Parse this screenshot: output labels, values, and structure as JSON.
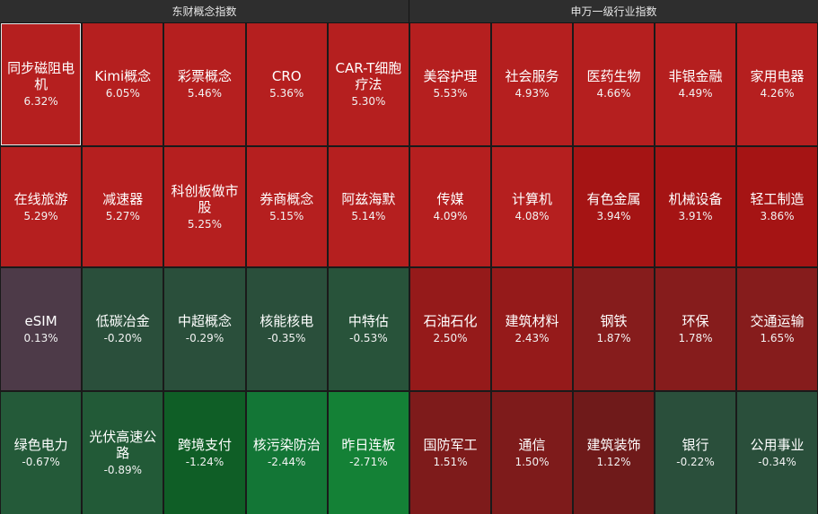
{
  "left_panel": {
    "title": "东财概念指数",
    "tiles": [
      {
        "name": "同步磁阻电机",
        "pct": "6.32%",
        "color": "#b51f1f",
        "selected": true
      },
      {
        "name": "Kimi概念",
        "pct": "6.05%",
        "color": "#b51f1f"
      },
      {
        "name": "彩票概念",
        "pct": "5.46%",
        "color": "#b51f1f"
      },
      {
        "name": "CRO",
        "pct": "5.36%",
        "color": "#b51f1f"
      },
      {
        "name": "CAR-T细胞疗法",
        "pct": "5.30%",
        "color": "#b51f1f"
      },
      {
        "name": "在线旅游",
        "pct": "5.29%",
        "color": "#b51f1f"
      },
      {
        "name": "减速器",
        "pct": "5.27%",
        "color": "#b51f1f"
      },
      {
        "name": "科创板做市股",
        "pct": "5.25%",
        "color": "#b51f1f"
      },
      {
        "name": "券商概念",
        "pct": "5.15%",
        "color": "#b51f1f"
      },
      {
        "name": "阿兹海默",
        "pct": "5.14%",
        "color": "#b51f1f"
      },
      {
        "name": "eSIM",
        "pct": "0.13%",
        "color": "#4d3a48"
      },
      {
        "name": "低碳冶金",
        "pct": "-0.20%",
        "color": "#2a4f3b"
      },
      {
        "name": "中超概念",
        "pct": "-0.29%",
        "color": "#2a4f3b"
      },
      {
        "name": "核能核电",
        "pct": "-0.35%",
        "color": "#2a4f3b"
      },
      {
        "name": "中特估",
        "pct": "-0.53%",
        "color": "#28533a"
      },
      {
        "name": "绿色电力",
        "pct": "-0.67%",
        "color": "#245a39"
      },
      {
        "name": "光伏高速公路",
        "pct": "-0.89%",
        "color": "#225a37"
      },
      {
        "name": "跨境支付",
        "pct": "-1.24%",
        "color": "#0f5e26"
      },
      {
        "name": "核污染防治",
        "pct": "-2.44%",
        "color": "#137636"
      },
      {
        "name": "昨日连板",
        "pct": "-2.71%",
        "color": "#148136"
      }
    ]
  },
  "right_panel": {
    "title": "申万一级行业指数",
    "tiles": [
      {
        "name": "美容护理",
        "pct": "5.53%",
        "color": "#b51f1f"
      },
      {
        "name": "社会服务",
        "pct": "4.93%",
        "color": "#b51f1f"
      },
      {
        "name": "医药生物",
        "pct": "4.66%",
        "color": "#b51f1f"
      },
      {
        "name": "非银金融",
        "pct": "4.49%",
        "color": "#b51f1f"
      },
      {
        "name": "家用电器",
        "pct": "4.26%",
        "color": "#b51f1f"
      },
      {
        "name": "传媒",
        "pct": "4.09%",
        "color": "#b51f1f"
      },
      {
        "name": "计算机",
        "pct": "4.08%",
        "color": "#b51f1f"
      },
      {
        "name": "有色金属",
        "pct": "3.94%",
        "color": "#a51414"
      },
      {
        "name": "机械设备",
        "pct": "3.91%",
        "color": "#a51414"
      },
      {
        "name": "轻工制造",
        "pct": "3.86%",
        "color": "#a51414"
      },
      {
        "name": "石油石化",
        "pct": "2.50%",
        "color": "#951a1a"
      },
      {
        "name": "建筑材料",
        "pct": "2.43%",
        "color": "#951a1a"
      },
      {
        "name": "钢铁",
        "pct": "1.87%",
        "color": "#861c1c"
      },
      {
        "name": "环保",
        "pct": "1.78%",
        "color": "#861c1c"
      },
      {
        "name": "交通运输",
        "pct": "1.65%",
        "color": "#861c1c"
      },
      {
        "name": "国防军工",
        "pct": "1.51%",
        "color": "#7e1b1b"
      },
      {
        "name": "通信",
        "pct": "1.50%",
        "color": "#7e1b1b"
      },
      {
        "name": "建筑装饰",
        "pct": "1.12%",
        "color": "#6f1a1a"
      },
      {
        "name": "银行",
        "pct": "-0.22%",
        "color": "#2a4f3b"
      },
      {
        "name": "公用事业",
        "pct": "-0.34%",
        "color": "#2a4f3b"
      }
    ]
  }
}
